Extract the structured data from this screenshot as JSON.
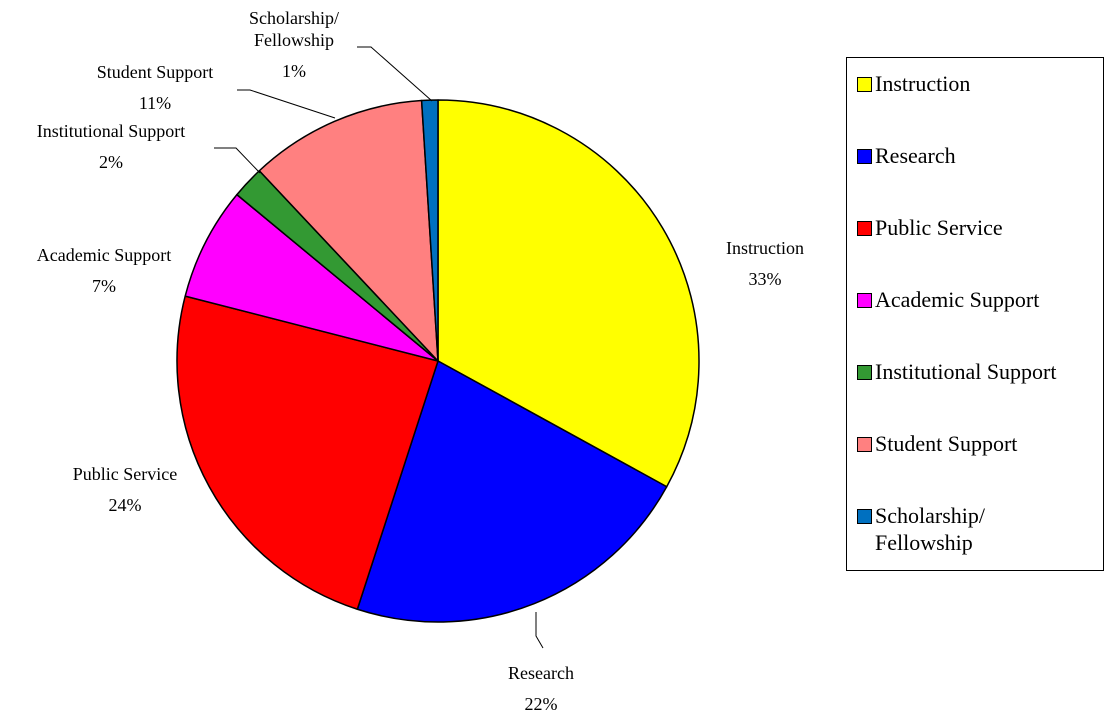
{
  "chart_data": {
    "type": "pie",
    "title": "",
    "slices": [
      {
        "label": "Instruction",
        "value": 33,
        "value_label": "33%",
        "color": "#FFFF00"
      },
      {
        "label": "Research",
        "value": 22,
        "value_label": "22%",
        "color": "#0000FF"
      },
      {
        "label": "Public Service",
        "value": 24,
        "value_label": "24%",
        "color": "#FF0000"
      },
      {
        "label": "Academic Support",
        "value": 7,
        "value_label": "7%",
        "color": "#FF00FF"
      },
      {
        "label": "Institutional Support",
        "value": 2,
        "value_label": "2%",
        "color": "#339933"
      },
      {
        "label": "Student Support",
        "value": 11,
        "value_label": "11%",
        "color": "#FF8080"
      },
      {
        "label": "Scholarship/\nFellowship",
        "value": 1,
        "value_label": "1%",
        "color": "#0070C0"
      }
    ],
    "legend": {
      "placement": "right",
      "items": [
        "Instruction",
        "Research",
        "Public Service",
        "Academic Support",
        "Institutional Support",
        "Student Support",
        "Scholarship/\nFellowship"
      ]
    }
  }
}
